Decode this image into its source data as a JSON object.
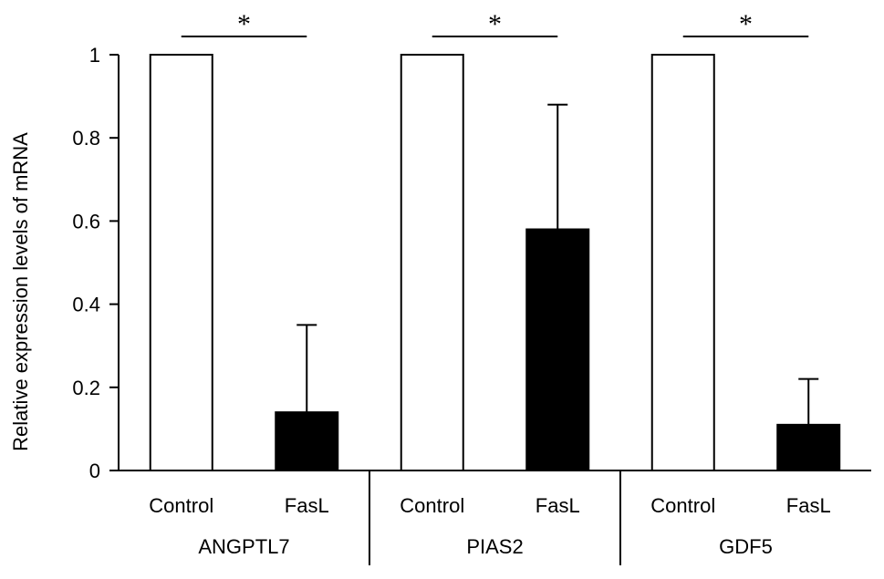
{
  "chart_data": {
    "type": "bar",
    "ylabel": "Relative expression levels of mRNA",
    "ylim": [
      0,
      1
    ],
    "yticks": [
      "0",
      "0.2",
      "0.4",
      "0.6",
      "0.8",
      "1"
    ],
    "groups": [
      {
        "name": "ANGPTL7",
        "bars": [
          {
            "label": "Control",
            "value": 1.0,
            "error": 0,
            "fill": "#ffffff"
          },
          {
            "label": "FasL",
            "value": 0.14,
            "error": 0.21,
            "fill": "#000000"
          }
        ],
        "significance": "*"
      },
      {
        "name": "PIAS2",
        "bars": [
          {
            "label": "Control",
            "value": 1.0,
            "error": 0,
            "fill": "#ffffff"
          },
          {
            "label": "FasL",
            "value": 0.58,
            "error": 0.3,
            "fill": "#000000"
          }
        ],
        "significance": "*"
      },
      {
        "name": "GDF5",
        "bars": [
          {
            "label": "Control",
            "value": 1.0,
            "error": 0,
            "fill": "#ffffff"
          },
          {
            "label": "FasL",
            "value": 0.11,
            "error": 0.11,
            "fill": "#000000"
          }
        ],
        "significance": "*"
      }
    ],
    "grid": false,
    "legend": "none"
  }
}
